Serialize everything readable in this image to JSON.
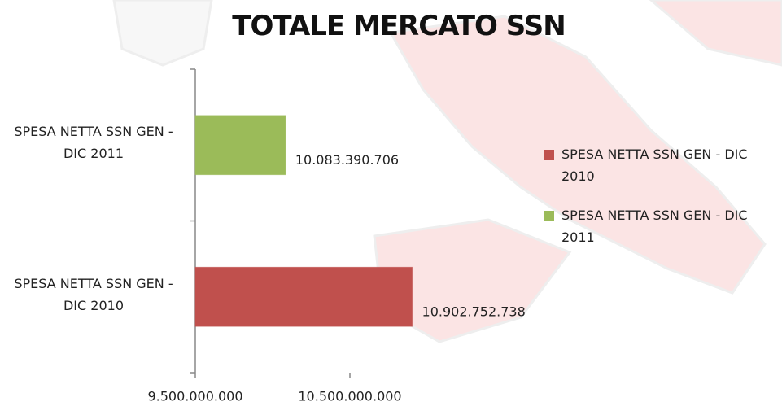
{
  "chart_data": {
    "type": "bar",
    "orientation": "horizontal",
    "title": "TOTALE MERCATO SSN",
    "categories": [
      "SPESA NETTA SSN GEN - DIC 2010",
      "SPESA NETTA SSN GEN - DIC 2011"
    ],
    "series": [
      {
        "name": "SPESA NETTA SSN GEN - DIC 2010",
        "color": "#c0504d",
        "values": [
          10902752738,
          null
        ],
        "value_labels": [
          "10.902.752.738",
          null
        ]
      },
      {
        "name": "SPESA NETTA SSN GEN - DIC 2011",
        "color": "#9bbb59",
        "values": [
          null,
          10083390706
        ],
        "value_labels": [
          null,
          "10.083.390.706"
        ]
      }
    ],
    "xlim": [
      9500000000,
      11000000000
    ],
    "xticks": [
      {
        "value": 9500000000,
        "label": "9.500.000.000"
      },
      {
        "value": 10500000000,
        "label": "10.500.000.000"
      }
    ],
    "grid": false,
    "legend": "right"
  }
}
